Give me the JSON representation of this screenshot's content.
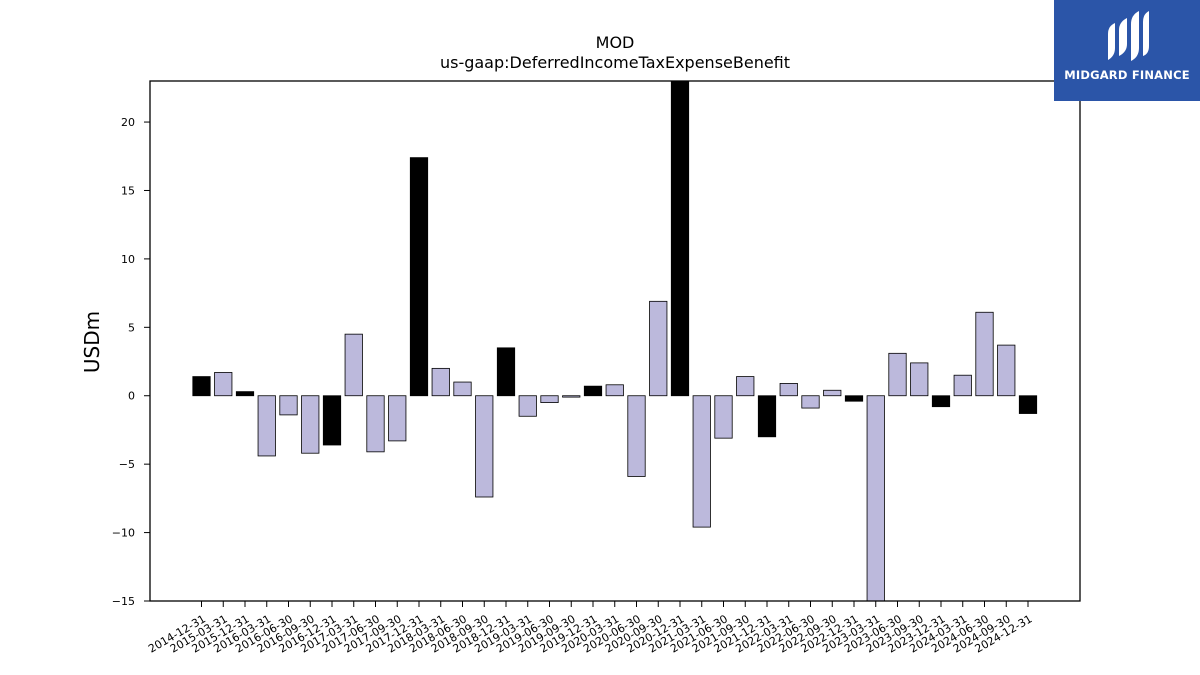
{
  "chart_data": {
    "type": "bar",
    "title": "MOD",
    "subtitle": "us-gaap:DeferredIncomeTaxExpenseBenefit",
    "xlabel": "",
    "ylabel": "USDm",
    "ylim": [
      -15,
      23
    ],
    "yticks": [
      -15,
      -10,
      -5,
      0,
      5,
      10,
      15,
      20
    ],
    "grid": false,
    "categories": [
      "2014-12-31",
      "2015-03-31",
      "2015-12-31",
      "2016-03-31",
      "2016-06-30",
      "2016-09-30",
      "2016-12-31",
      "2017-03-31",
      "2017-06-30",
      "2017-09-30",
      "2017-12-31",
      "2018-03-31",
      "2018-06-30",
      "2018-09-30",
      "2018-12-31",
      "2019-03-31",
      "2019-06-30",
      "2019-09-30",
      "2019-12-31",
      "2020-03-31",
      "2020-06-30",
      "2020-09-30",
      "2020-12-31",
      "2021-03-31",
      "2021-06-30",
      "2021-09-30",
      "2021-12-31",
      "2022-03-31",
      "2022-06-30",
      "2022-09-30",
      "2022-12-31",
      "2023-03-31",
      "2023-06-30",
      "2023-09-30",
      "2023-12-31",
      "2024-03-31",
      "2024-06-30",
      "2024-09-30",
      "2024-12-31"
    ],
    "values": [
      1.4,
      1.7,
      0.3,
      -4.4,
      -1.4,
      -4.2,
      -3.6,
      4.5,
      -4.1,
      -3.3,
      17.4,
      2.0,
      1.0,
      -7.4,
      3.5,
      -1.5,
      -0.5,
      -0.1,
      0.7,
      0.8,
      -5.9,
      6.9,
      23.0,
      -9.6,
      -3.1,
      1.4,
      -3.0,
      0.9,
      -0.9,
      0.4,
      -0.4,
      -15.0,
      3.1,
      2.4,
      -0.8,
      1.5,
      6.1,
      3.7,
      -1.3
    ],
    "highlight": [
      true,
      false,
      true,
      false,
      false,
      false,
      true,
      false,
      false,
      false,
      true,
      false,
      false,
      false,
      true,
      false,
      false,
      false,
      true,
      false,
      false,
      false,
      true,
      false,
      false,
      false,
      true,
      false,
      false,
      false,
      true,
      false,
      false,
      false,
      true,
      false,
      false,
      false,
      true
    ],
    "colors": {
      "highlight": "#000000",
      "normal": "#bcb9dc",
      "edge": "#000000"
    }
  },
  "logo": {
    "text": "MIDGARD FINANCE",
    "background": "#2b55a8"
  }
}
